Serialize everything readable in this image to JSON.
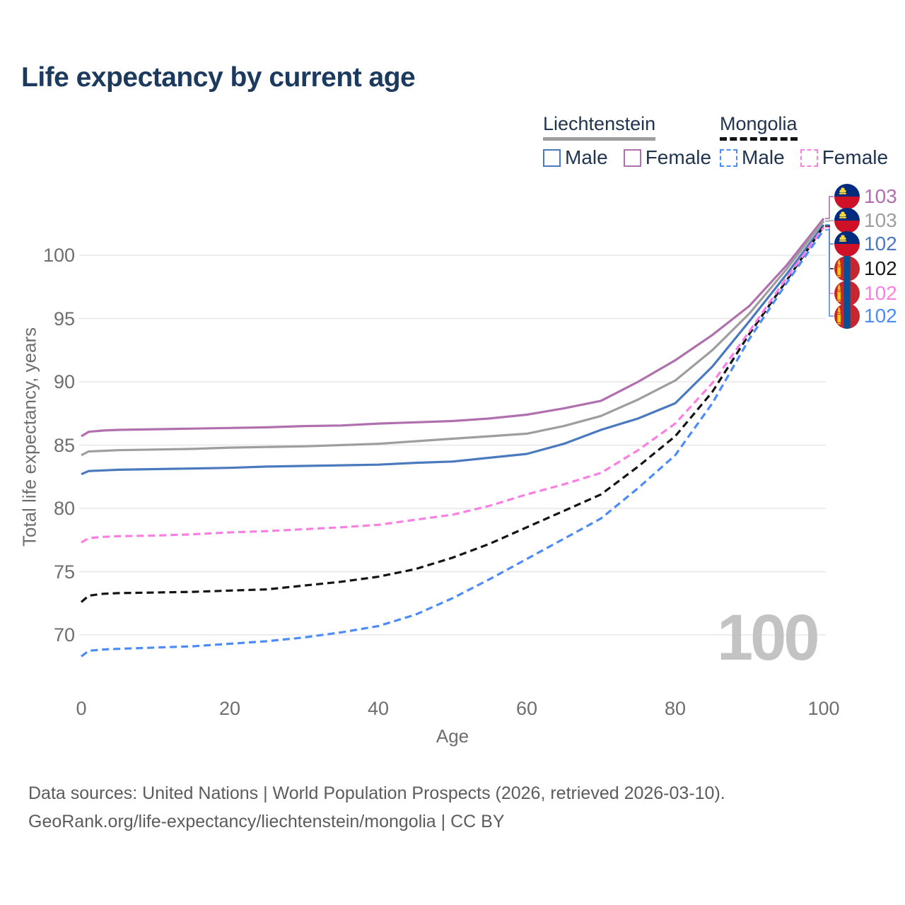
{
  "title": "Life expectancy by current age",
  "watermark": "100",
  "footer": {
    "line1": "Data sources: United Nations | World Population Prospects (2026, retrieved 2026-03-10).",
    "line2": "GeoRank.org/life-expectancy/liechtenstein/mongolia | CC BY"
  },
  "legend": {
    "groups": [
      {
        "name": "Liechtenstein",
        "line_style": "solid",
        "line_color": "#9e9e9e",
        "items": [
          {
            "label": "Male",
            "color": "#4a79be",
            "style": "solid"
          },
          {
            "label": "Female",
            "color": "#b06fad",
            "style": "solid"
          }
        ]
      },
      {
        "name": "Mongolia",
        "line_style": "dashed",
        "line_color": "#141414",
        "items": [
          {
            "label": "Male",
            "color": "#4b8cf7",
            "style": "dashed"
          },
          {
            "label": "Female",
            "color": "#fb7fe3",
            "style": "dashed"
          }
        ]
      }
    ]
  },
  "flag_colors": {
    "liechtenstein": {
      "blue": "#002B7F",
      "red": "#CE1126",
      "crown": "#FFD83D"
    },
    "mongolia": {
      "red": "#C4272F",
      "blue": "#015197",
      "gold": "#F9CF02"
    }
  },
  "chart_data": {
    "type": "line",
    "title": "Life expectancy by current age",
    "xlabel": "Age",
    "ylabel": "Total life expectancy, years",
    "xlim": [
      0,
      100
    ],
    "ylim": [
      67,
      104
    ],
    "xticks": [
      0,
      20,
      40,
      60,
      80,
      100
    ],
    "yticks": [
      70,
      75,
      80,
      85,
      90,
      95,
      100
    ],
    "grid": "horizontal-only",
    "legend_position": "top-right",
    "x": [
      0,
      1,
      3,
      5,
      10,
      15,
      20,
      25,
      30,
      35,
      40,
      45,
      50,
      55,
      60,
      65,
      70,
      75,
      80,
      85,
      90,
      95,
      100
    ],
    "series": [
      {
        "name": "Liechtenstein Female",
        "country": "Liechtenstein",
        "sex": "Female",
        "color": "#b06fad",
        "dash": false,
        "flag": "liechtenstein",
        "end_label": "103",
        "label_slot": 0,
        "values": [
          85.7,
          86.05,
          86.15,
          86.2,
          86.25,
          86.3,
          86.35,
          86.4,
          86.5,
          86.55,
          86.7,
          86.8,
          86.9,
          87.1,
          87.4,
          87.9,
          88.5,
          90.0,
          91.7,
          93.7,
          96.0,
          99.2,
          102.9
        ]
      },
      {
        "name": "Liechtenstein Both sexes",
        "country": "Liechtenstein",
        "sex": "Both",
        "color": "#9e9e9e",
        "dash": false,
        "flag": "liechtenstein",
        "end_label": "103",
        "label_slot": 1,
        "values": [
          84.2,
          84.5,
          84.55,
          84.6,
          84.65,
          84.7,
          84.8,
          84.85,
          84.9,
          85.0,
          85.1,
          85.3,
          85.5,
          85.7,
          85.9,
          86.5,
          87.3,
          88.6,
          90.1,
          92.5,
          95.4,
          98.9,
          102.7
        ]
      },
      {
        "name": "Liechtenstein Male",
        "country": "Liechtenstein",
        "sex": "Male",
        "color": "#4a79be",
        "dash": false,
        "flag": "liechtenstein",
        "end_label": "102",
        "label_slot": 2,
        "values": [
          82.7,
          82.95,
          83.0,
          83.05,
          83.1,
          83.15,
          83.2,
          83.3,
          83.35,
          83.4,
          83.45,
          83.6,
          83.7,
          84.0,
          84.3,
          85.1,
          86.2,
          87.1,
          88.3,
          91.2,
          94.8,
          98.5,
          102.4
        ]
      },
      {
        "name": "Mongolia Both sexes",
        "country": "Mongolia",
        "sex": "Both",
        "color": "#141414",
        "dash": true,
        "flag": "mongolia",
        "end_label": "102",
        "label_slot": 3,
        "values": [
          72.6,
          73.1,
          73.25,
          73.3,
          73.35,
          73.4,
          73.5,
          73.6,
          73.9,
          74.2,
          74.6,
          75.2,
          76.1,
          77.2,
          78.5,
          79.8,
          81.1,
          83.3,
          85.7,
          89.2,
          93.8,
          98.0,
          102.3
        ]
      },
      {
        "name": "Mongolia Female",
        "country": "Mongolia",
        "sex": "Female",
        "color": "#fb7fe3",
        "dash": true,
        "flag": "mongolia",
        "end_label": "102",
        "label_slot": 4,
        "values": [
          77.3,
          77.65,
          77.75,
          77.8,
          77.85,
          77.95,
          78.1,
          78.2,
          78.35,
          78.5,
          78.7,
          79.1,
          79.5,
          80.2,
          81.1,
          81.9,
          82.8,
          84.6,
          86.7,
          89.9,
          94.0,
          98.2,
          102.2
        ]
      },
      {
        "name": "Mongolia Male",
        "country": "Mongolia",
        "sex": "Male",
        "color": "#4b8cf7",
        "dash": true,
        "flag": "mongolia",
        "end_label": "102",
        "label_slot": 5,
        "values": [
          68.3,
          68.75,
          68.85,
          68.9,
          69.0,
          69.1,
          69.3,
          69.5,
          69.8,
          70.2,
          70.7,
          71.6,
          72.9,
          74.4,
          76.0,
          77.6,
          79.2,
          81.6,
          84.2,
          88.3,
          93.4,
          97.8,
          102.0
        ]
      }
    ]
  }
}
